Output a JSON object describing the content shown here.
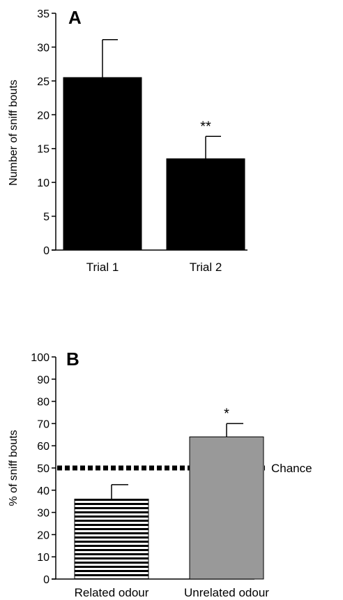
{
  "chart_data": [
    {
      "type": "bar",
      "panel_label": "A",
      "title": "",
      "categories": [
        "Trial 1",
        "Trial 2"
      ],
      "values": [
        25.5,
        13.5
      ],
      "error_bars": [
        5.6,
        3.3
      ],
      "significance": [
        "",
        "**"
      ],
      "bar_fills": [
        "solid",
        "solid"
      ],
      "bar_colors": [
        "#000000",
        "#000000"
      ],
      "xlabel": "",
      "ylabel": "Number of sniff bouts",
      "ylim": [
        0,
        35
      ],
      "yticks": [
        0,
        5,
        10,
        15,
        20,
        25,
        30,
        35
      ],
      "grid": false
    },
    {
      "type": "bar",
      "panel_label": "B",
      "title": "",
      "categories": [
        "Related odour",
        "Unrelated odour"
      ],
      "values": [
        36,
        64
      ],
      "error_bars": [
        6.5,
        6
      ],
      "significance": [
        "",
        "*"
      ],
      "bar_fills": [
        "horizontal-stripes",
        "solid"
      ],
      "bar_colors": [
        "#000000",
        "#999999"
      ],
      "xlabel": "",
      "ylabel": "% of sniff bouts",
      "ylim": [
        0,
        100
      ],
      "yticks": [
        0,
        10,
        20,
        30,
        40,
        50,
        60,
        70,
        80,
        90,
        100
      ],
      "reference_line": {
        "value": 50,
        "label": "Chance",
        "style": "dotted"
      },
      "grid": false
    }
  ]
}
